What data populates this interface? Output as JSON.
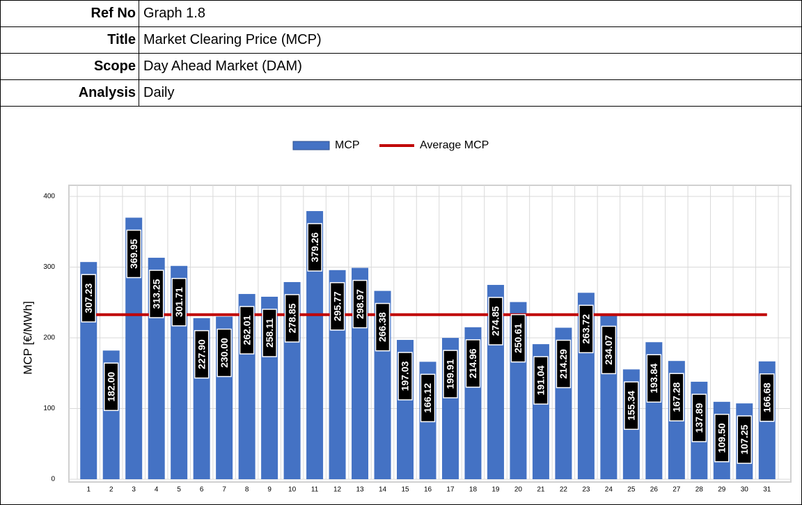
{
  "header": {
    "rows": [
      [
        "Ref No",
        "Graph 1.8"
      ],
      [
        "Title",
        "Market Clearing Price (MCP)"
      ],
      [
        "Scope",
        "Day Ahead Market (DAM)"
      ],
      [
        "Analysis",
        "Daily"
      ]
    ]
  },
  "chart_data": {
    "type": "bar",
    "ylabel": "MCP [€/MWh]",
    "categories": [
      "1",
      "2",
      "3",
      "4",
      "5",
      "6",
      "7",
      "8",
      "9",
      "10",
      "11",
      "12",
      "13",
      "14",
      "15",
      "16",
      "17",
      "18",
      "19",
      "20",
      "21",
      "22",
      "23",
      "24",
      "25",
      "26",
      "27",
      "28",
      "29",
      "30",
      "31"
    ],
    "series": [
      {
        "name": "MCP",
        "color": "#4472c4",
        "values": [
          307.23,
          182.0,
          369.95,
          313.25,
          301.71,
          227.9,
          230.0,
          262.01,
          258.11,
          278.85,
          379.26,
          295.77,
          298.97,
          266.38,
          197.03,
          166.12,
          199.91,
          214.96,
          274.85,
          250.61,
          191.04,
          214.29,
          263.72,
          234.07,
          155.34,
          193.84,
          167.28,
          137.89,
          109.5,
          107.25,
          166.68
        ],
        "value_labels": [
          "307.23",
          "182.00",
          "369.95",
          "313.25",
          "301.71",
          "227.90",
          "230.00",
          "262.01",
          "258.11",
          "278.85",
          "379.26",
          "295.77",
          "298.97",
          "266.38",
          "197.03",
          "166.12",
          "199.91",
          "214.96",
          "274.85",
          "250.61",
          "191.04",
          "214.29",
          "263.72",
          "234.07",
          "155.34",
          "193.84",
          "167.28",
          "137.89",
          "109.50",
          "107.25",
          "166.68"
        ]
      },
      {
        "name": "Average MCP",
        "color": "#c00000",
        "type": "line",
        "values": [
          232.77,
          232.77,
          232.77,
          232.77,
          232.77,
          232.77,
          232.77,
          232.77,
          232.77,
          232.77,
          232.77,
          232.77,
          232.77,
          232.77,
          232.77,
          232.77,
          232.77,
          232.77,
          232.77,
          232.77,
          232.77,
          232.77,
          232.77,
          232.77,
          232.77,
          232.77,
          232.77,
          232.77,
          232.77,
          232.77,
          232.77
        ]
      }
    ],
    "ylim": [
      0,
      400
    ],
    "yticks": [
      0,
      100,
      200,
      300,
      400
    ],
    "grid": true,
    "legend": "top"
  }
}
